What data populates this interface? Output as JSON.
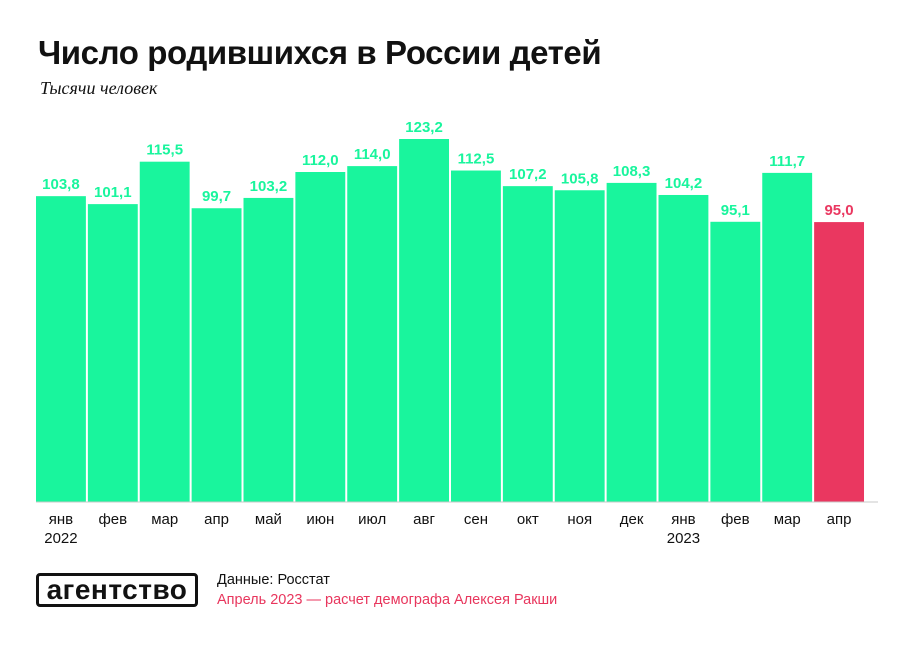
{
  "header": {
    "title": "Число родившихся в России детей",
    "subtitle": "Тысячи человек"
  },
  "footer": {
    "logo_text": "агентство",
    "source": "Данные: Росстат",
    "note": "Апрель 2023 — расчет демографа Алексея Ракши"
  },
  "colors": {
    "bar": "#19f59d",
    "bar_value_label": "#19f59d",
    "highlight_bar": "#ea3760",
    "highlight_label": "#ea3760",
    "axis": "#c8c8c8",
    "note": "#e8365d"
  },
  "chart_data": {
    "type": "bar",
    "title": "Число родившихся в России детей",
    "ylabel": "Тысячи человек",
    "categories": [
      "янв",
      "фев",
      "мар",
      "апр",
      "май",
      "июн",
      "июл",
      "авг",
      "сен",
      "окт",
      "ноя",
      "дек",
      "янв",
      "фев",
      "мар",
      "апр"
    ],
    "values": [
      103.8,
      101.1,
      115.5,
      99.7,
      103.2,
      112.0,
      114.0,
      123.2,
      112.5,
      107.2,
      105.8,
      108.3,
      104.2,
      95.1,
      111.7,
      95.0
    ],
    "value_labels": [
      "103,8",
      "101,1",
      "115,5",
      "99,7",
      "103,2",
      "112,0",
      "114,0",
      "123,2",
      "112,5",
      "107,2",
      "105,8",
      "108,3",
      "104,2",
      "95,1",
      "111,7",
      "95,0"
    ],
    "year_labels": [
      {
        "index": 0,
        "label": "2022"
      },
      {
        "index": 12,
        "label": "2023"
      }
    ],
    "highlight_index": 15,
    "ylim": [
      0,
      123.2
    ],
    "grid": false,
    "legend": "none"
  }
}
